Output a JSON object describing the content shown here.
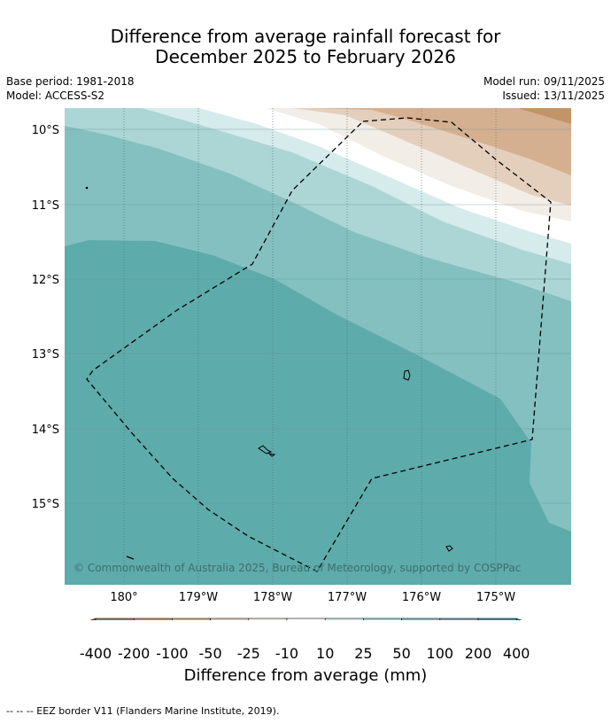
{
  "title": {
    "line1": "Difference from average rainfall forecast for",
    "line2": "December 2025 to February 2026"
  },
  "meta": {
    "base_period": "Base period: 1981-2018",
    "model": "Model: ACCESS-S2",
    "model_run": "Model run: 09/11/2025",
    "issued": "Issued: 13/11/2025"
  },
  "map": {
    "lat_labels": [
      "10°S",
      "11°S",
      "12°S",
      "13°S",
      "14°S",
      "15°S"
    ],
    "lon_labels": [
      "180°",
      "179°W",
      "178°W",
      "177°W",
      "176°W",
      "175°W"
    ],
    "copyright": "© Commonwealth of Australia 2025, Bureau of Meteorology, supported by COSPPac"
  },
  "colorbar": {
    "labels": [
      "-400",
      "-200",
      "-100",
      "-50",
      "-25",
      "-10",
      "10",
      "25",
      "50",
      "100",
      "200",
      "400"
    ],
    "colors": [
      "#8b5a2b",
      "#b07a45",
      "#c29467",
      "#d4b090",
      "#e4cfbd",
      "#f2ede7",
      "#ffffff",
      "#d6ebeb",
      "#acd5d5",
      "#84c0c0",
      "#5eabab",
      "#349b9b",
      "#2d7b7b"
    ],
    "title": "Difference from average (mm)"
  },
  "footnote": "-- -- -- EEZ border V11 (Flanders Marine Institute, 2019)."
}
